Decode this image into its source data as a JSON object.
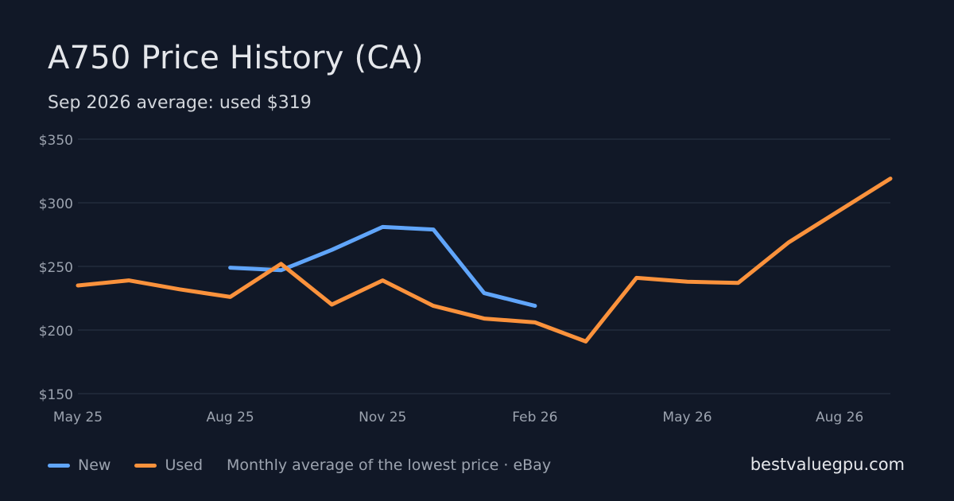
{
  "header": {
    "title": "A750 Price History (CA)",
    "subtitle": "Sep 2026 average: used $319"
  },
  "footer": {
    "legend": [
      {
        "label": "New",
        "color": "#60a5fa"
      },
      {
        "label": "Used",
        "color": "#fb923c"
      }
    ],
    "note": "Monthly average of the lowest price · eBay",
    "brand": "bestvaluegpu.com"
  },
  "chart_data": {
    "type": "line",
    "x": [
      "2025-05",
      "2025-06",
      "2025-07",
      "2025-08",
      "2025-09",
      "2025-10",
      "2025-11",
      "2025-12",
      "2026-01",
      "2026-02",
      "2026-03",
      "2026-04",
      "2026-05",
      "2026-06",
      "2026-07",
      "2026-08",
      "2026-09"
    ],
    "x_ticks": [
      {
        "x": "2025-05",
        "label": "May 25"
      },
      {
        "x": "2025-08",
        "label": "Aug 25"
      },
      {
        "x": "2025-11",
        "label": "Nov 25"
      },
      {
        "x": "2026-02",
        "label": "Feb 26"
      },
      {
        "x": "2026-05",
        "label": "May 26"
      },
      {
        "x": "2026-08",
        "label": "Aug 26"
      }
    ],
    "y_ticks": [
      150,
      200,
      250,
      300,
      350
    ],
    "y_tick_labels": [
      "$150",
      "$200",
      "$250",
      "$300",
      "$350"
    ],
    "ylim": [
      150,
      350
    ],
    "grid": true,
    "series": [
      {
        "name": "New",
        "color": "#60a5fa",
        "values": [
          null,
          null,
          null,
          249,
          247,
          263,
          281,
          279,
          229,
          219,
          null,
          null,
          null,
          null,
          null,
          null,
          null
        ]
      },
      {
        "name": "Used",
        "color": "#fb923c",
        "values": [
          235,
          239,
          232,
          226,
          252,
          220,
          239,
          219,
          209,
          206,
          191,
          241,
          238,
          237,
          269,
          294,
          319
        ]
      }
    ]
  }
}
